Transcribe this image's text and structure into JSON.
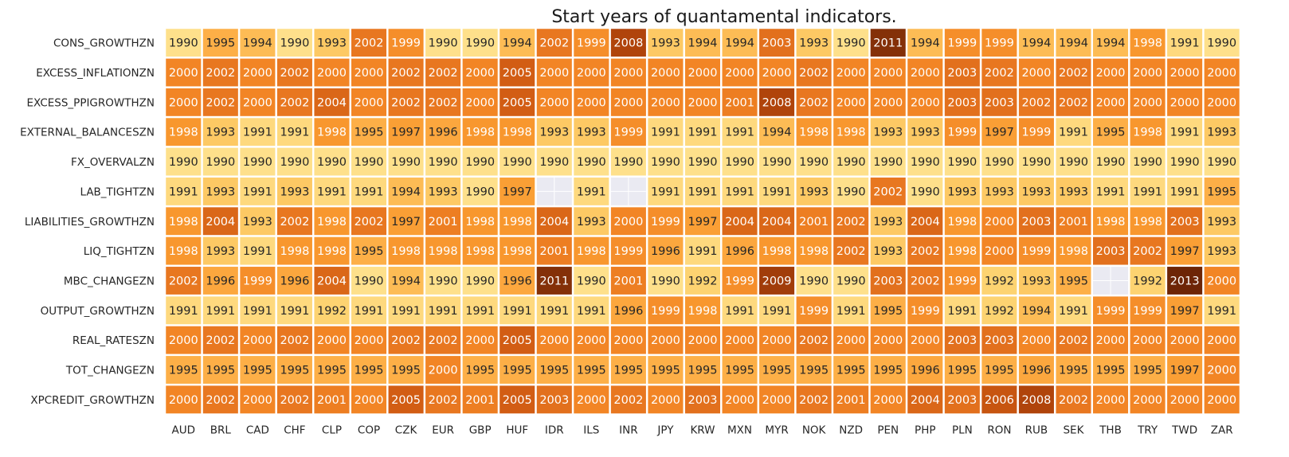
{
  "chart_data": {
    "type": "heatmap",
    "title": "Start years of quantamental indicators.",
    "xlabel": "",
    "ylabel": "",
    "columns": [
      "AUD",
      "BRL",
      "CAD",
      "CHF",
      "CLP",
      "COP",
      "CZK",
      "EUR",
      "GBP",
      "HUF",
      "IDR",
      "ILS",
      "INR",
      "JPY",
      "KRW",
      "MXN",
      "MYR",
      "NOK",
      "NZD",
      "PEN",
      "PHP",
      "PLN",
      "RON",
      "RUB",
      "SEK",
      "THB",
      "TRY",
      "TWD",
      "ZAR"
    ],
    "rows": [
      "CONS_GROWTHZN",
      "EXCESS_INFLATIONZN",
      "EXCESS_PPIGROWTHZN",
      "EXTERNAL_BALANCESZN",
      "FX_OVERVALZN",
      "LAB_TIGHTZN",
      "LIABILITIES_GROWTHZN",
      "LIQ_TIGHTZN",
      "MBC_CHANGEZN",
      "OUTPUT_GROWTHZN",
      "REAL_RATESZN",
      "TOT_CHANGEZN",
      "XPCREDIT_GROWTHZN"
    ],
    "values": [
      [
        1990,
        1995,
        1994,
        1990,
        1993,
        2002,
        1999,
        1990,
        1990,
        1994,
        2002,
        1999,
        2008,
        1993,
        1994,
        1994,
        2003,
        1993,
        1990,
        2011,
        1994,
        1999,
        1999,
        1994,
        1994,
        1994,
        1998,
        1991,
        1990
      ],
      [
        2000,
        2002,
        2000,
        2002,
        2000,
        2000,
        2002,
        2002,
        2000,
        2005,
        2000,
        2000,
        2000,
        2000,
        2000,
        2000,
        2000,
        2002,
        2000,
        2000,
        2000,
        2003,
        2002,
        2000,
        2002,
        2000,
        2000,
        2000,
        2000
      ],
      [
        2000,
        2002,
        2000,
        2002,
        2004,
        2000,
        2002,
        2002,
        2000,
        2005,
        2000,
        2000,
        2000,
        2000,
        2000,
        2001,
        2008,
        2002,
        2000,
        2000,
        2000,
        2003,
        2003,
        2002,
        2002,
        2000,
        2000,
        2000,
        2000
      ],
      [
        1998,
        1993,
        1991,
        1991,
        1998,
        1995,
        1997,
        1996,
        1998,
        1998,
        1993,
        1993,
        1999,
        1991,
        1991,
        1991,
        1994,
        1998,
        1998,
        1993,
        1993,
        1999,
        1997,
        1999,
        1991,
        1995,
        1998,
        1991,
        1993
      ],
      [
        1990,
        1990,
        1990,
        1990,
        1990,
        1990,
        1990,
        1990,
        1990,
        1990,
        1990,
        1990,
        1990,
        1990,
        1990,
        1990,
        1990,
        1990,
        1990,
        1990,
        1990,
        1990,
        1990,
        1990,
        1990,
        1990,
        1990,
        1990,
        1990
      ],
      [
        1991,
        1993,
        1991,
        1993,
        1991,
        1991,
        1994,
        1993,
        1990,
        1997,
        null,
        1991,
        null,
        1991,
        1991,
        1991,
        1991,
        1993,
        1990,
        2002,
        1990,
        1993,
        1993,
        1993,
        1993,
        1991,
        1991,
        1991,
        1995
      ],
      [
        1998,
        2004,
        1993,
        2002,
        1998,
        2002,
        1997,
        2001,
        1998,
        1998,
        2004,
        1993,
        2000,
        1999,
        1997,
        2004,
        2004,
        2001,
        2002,
        1993,
        2004,
        1998,
        2000,
        2003,
        2001,
        1998,
        1998,
        2003,
        1993
      ],
      [
        1998,
        1993,
        1991,
        1998,
        1998,
        1995,
        1998,
        1998,
        1998,
        1998,
        2001,
        1998,
        1999,
        1996,
        1991,
        1996,
        1998,
        1998,
        2002,
        1993,
        2002,
        1998,
        2000,
        1999,
        1998,
        2003,
        2002,
        1997,
        1993
      ],
      [
        2002,
        1996,
        1999,
        1996,
        2004,
        1990,
        1994,
        1990,
        1990,
        1996,
        2011,
        1990,
        2001,
        1990,
        1992,
        1999,
        2009,
        1990,
        1990,
        2003,
        2002,
        1999,
        1992,
        1993,
        1995,
        null,
        1992,
        2013,
        2000
      ],
      [
        1991,
        1991,
        1991,
        1991,
        1992,
        1991,
        1991,
        1991,
        1991,
        1991,
        1991,
        1991,
        1996,
        1999,
        1998,
        1991,
        1991,
        1999,
        1991,
        1995,
        1999,
        1991,
        1992,
        1994,
        1991,
        1999,
        1999,
        1997,
        1991
      ],
      [
        2000,
        2002,
        2000,
        2002,
        2000,
        2000,
        2002,
        2002,
        2000,
        2005,
        2000,
        2000,
        2000,
        2000,
        2000,
        2000,
        2000,
        2002,
        2000,
        2000,
        2000,
        2003,
        2003,
        2000,
        2002,
        2000,
        2000,
        2000,
        2000
      ],
      [
        1995,
        1995,
        1995,
        1995,
        1995,
        1995,
        1995,
        2000,
        1995,
        1995,
        1995,
        1995,
        1995,
        1995,
        1995,
        1995,
        1995,
        1995,
        1995,
        1995,
        1996,
        1995,
        1995,
        1996,
        1995,
        1995,
        1995,
        1997,
        2000
      ],
      [
        2000,
        2002,
        2000,
        2002,
        2001,
        2000,
        2005,
        2002,
        2001,
        2005,
        2003,
        2000,
        2002,
        2000,
        2003,
        2000,
        2000,
        2002,
        2001,
        2000,
        2004,
        2003,
        2006,
        2008,
        2002,
        2000,
        2000,
        2000,
        2000
      ]
    ],
    "missing_color": "#eaeaf2",
    "colorscale": [
      "#fee08b",
      "#fdcf6a",
      "#fdae45",
      "#f99a30",
      "#f18324",
      "#e4721e",
      "#cf5a12",
      "#b2450b",
      "#8b3308",
      "#6d2506"
    ],
    "value_range": [
      1990,
      2013
    ]
  }
}
